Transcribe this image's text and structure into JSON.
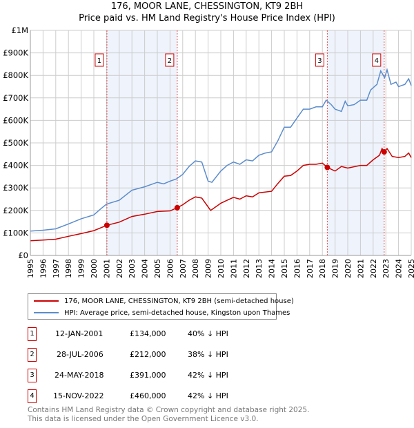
{
  "title": "176, MOOR LANE, CHESSINGTON, KT9 2BH",
  "subtitle": "Price paid vs. HM Land Registry's House Price Index (HPI)",
  "colors": {
    "property": "#cc0000",
    "hpi": "#5b8ccc",
    "shade": "#eef3fc",
    "grid": "#cccccc"
  },
  "chart_data": {
    "type": "line",
    "title": "176, MOOR LANE, CHESSINGTON, KT9 2BH",
    "xlim": [
      1995,
      2025
    ],
    "ylim": [
      0,
      1000000
    ],
    "x_ticks": [
      "1995",
      "1996",
      "1997",
      "1998",
      "1999",
      "2000",
      "2001",
      "2002",
      "2003",
      "2004",
      "2005",
      "2006",
      "2007",
      "2008",
      "2009",
      "2010",
      "2011",
      "2012",
      "2013",
      "2014",
      "2015",
      "2016",
      "2017",
      "2018",
      "2019",
      "2020",
      "2021",
      "2022",
      "2023",
      "2024",
      "2025"
    ],
    "y_ticks": [
      {
        "v": 0,
        "label": "£0"
      },
      {
        "v": 100000,
        "label": "£100K"
      },
      {
        "v": 200000,
        "label": "£200K"
      },
      {
        "v": 300000,
        "label": "£300K"
      },
      {
        "v": 400000,
        "label": "£400K"
      },
      {
        "v": 500000,
        "label": "£500K"
      },
      {
        "v": 600000,
        "label": "£600K"
      },
      {
        "v": 700000,
        "label": "£700K"
      },
      {
        "v": 800000,
        "label": "£800K"
      },
      {
        "v": 900000,
        "label": "£900K"
      },
      {
        "v": 1000000,
        "label": "£1M"
      }
    ],
    "grid": true,
    "series": [
      {
        "name": "176, MOOR LANE, CHESSINGTON, KT9 2BH (semi-detached house)",
        "color": "#cc0000",
        "x": [
          1995,
          1996,
          1997,
          1998,
          1999,
          2000,
          2001.03,
          2002,
          2003,
          2004,
          2005,
          2006,
          2006.57,
          2007,
          2007.5,
          2008,
          2008.5,
          2009.2,
          2010,
          2010.5,
          2011,
          2011.5,
          2012,
          2012.5,
          2013,
          2014,
          2014.5,
          2015,
          2015.5,
          2016,
          2016.5,
          2017,
          2017.5,
          2018,
          2018.39,
          2019,
          2019.5,
          2020,
          2021,
          2021.5,
          2022,
          2022.5,
          2022.7,
          2022.87,
          2023.1,
          2023.5,
          2024,
          2024.5,
          2024.8,
          2025
        ],
        "y": [
          65000,
          68000,
          72000,
          85000,
          97000,
          110000,
          134000,
          148000,
          173000,
          183000,
          195000,
          198000,
          212000,
          225000,
          245000,
          260000,
          255000,
          200000,
          232000,
          245000,
          258000,
          250000,
          265000,
          260000,
          278000,
          285000,
          320000,
          352000,
          355000,
          375000,
          400000,
          405000,
          405000,
          410000,
          391000,
          375000,
          395000,
          388000,
          400000,
          400000,
          425000,
          445000,
          475000,
          460000,
          475000,
          440000,
          435000,
          440000,
          455000,
          435000
        ]
      },
      {
        "name": "HPI: Average price, semi-detached house, Kingston upon Thames",
        "color": "#5b8ccc",
        "x": [
          1995,
          1996,
          1997,
          1998,
          1999,
          2000,
          2000.5,
          2001,
          2002,
          2003,
          2004,
          2005,
          2005.5,
          2006,
          2006.5,
          2007,
          2007.5,
          2008,
          2008.5,
          2009,
          2009.3,
          2010,
          2010.5,
          2011,
          2011.5,
          2012,
          2012.5,
          2013,
          2013.5,
          2014,
          2014.5,
          2015,
          2015.5,
          2016,
          2016.5,
          2017,
          2017.5,
          2018,
          2018.3,
          2018.7,
          2019,
          2019.5,
          2019.8,
          2020,
          2020.5,
          2021,
          2021.5,
          2021.8,
          2022.3,
          2022.6,
          2022.9,
          2023.1,
          2023.4,
          2023.8,
          2024,
          2024.5,
          2024.8,
          2025
        ],
        "y": [
          108000,
          112000,
          118000,
          140000,
          163000,
          180000,
          205000,
          228000,
          245000,
          290000,
          305000,
          325000,
          318000,
          330000,
          340000,
          360000,
          395000,
          420000,
          415000,
          330000,
          325000,
          375000,
          400000,
          415000,
          405000,
          425000,
          420000,
          445000,
          455000,
          460000,
          510000,
          570000,
          570000,
          610000,
          650000,
          650000,
          660000,
          660000,
          690000,
          670000,
          650000,
          640000,
          685000,
          665000,
          670000,
          690000,
          690000,
          735000,
          760000,
          820000,
          790000,
          825000,
          760000,
          770000,
          750000,
          760000,
          785000,
          755000
        ]
      }
    ],
    "sales": [
      {
        "id": "1",
        "x": 2001.03,
        "y": 134000
      },
      {
        "id": "2",
        "x": 2006.57,
        "y": 212000
      },
      {
        "id": "3",
        "x": 2018.39,
        "y": 391000
      },
      {
        "id": "4",
        "x": 2022.87,
        "y": 460000
      }
    ],
    "shaded_ranges": [
      [
        2001.03,
        2006.57
      ],
      [
        2018.39,
        2022.87
      ]
    ],
    "legend_placement": "bottom"
  },
  "legend": {
    "property": "176, MOOR LANE, CHESSINGTON, KT9 2BH (semi-detached house)",
    "hpi": "HPI: Average price, semi-detached house, Kingston upon Thames"
  },
  "sales_table": [
    {
      "num": "1",
      "date": "12-JAN-2001",
      "price": "£134,000",
      "delta": "40% ↓ HPI"
    },
    {
      "num": "2",
      "date": "28-JUL-2006",
      "price": "£212,000",
      "delta": "38% ↓ HPI"
    },
    {
      "num": "3",
      "date": "24-MAY-2018",
      "price": "£391,000",
      "delta": "42% ↓ HPI"
    },
    {
      "num": "4",
      "date": "15-NOV-2022",
      "price": "£460,000",
      "delta": "42% ↓ HPI"
    }
  ],
  "footer": {
    "line1": "Contains HM Land Registry data © Crown copyright and database right 2025.",
    "line2": "This data is licensed under the Open Government Licence v3.0."
  }
}
